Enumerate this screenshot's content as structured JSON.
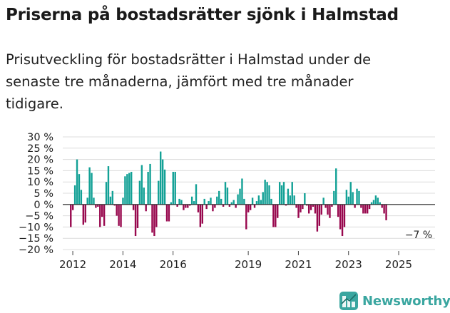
{
  "header": {
    "title": "Priserna på bostadsrätter sjönk i Halmstad",
    "subtitle": "Prisutveckling för bostadsrätter i Halmstad under de senaste tre månaderna, jämfört med tre månader tidigare."
  },
  "brand": {
    "name": "Newsworthy",
    "icon": "newsworthy-logo-icon",
    "color": "#3aa6a0"
  },
  "colors": {
    "positive": "#13a196",
    "negative": "#98084e",
    "grid": "#dcdcdc",
    "zero_line": "#222222"
  },
  "chart_data": {
    "type": "bar",
    "title": "Priserna på bostadsrätter sjönk i Halmstad",
    "xlabel": "",
    "ylabel": "",
    "ylim": [
      -20,
      30
    ],
    "y_ticks": [
      "30 %",
      "25 %",
      "20 %",
      "15 %",
      "10 %",
      "5 %",
      "0 %",
      "−5 %",
      "−10 %",
      "−15 %",
      "−20 %"
    ],
    "y_tick_values": [
      30,
      25,
      20,
      15,
      10,
      5,
      0,
      -5,
      -10,
      -15,
      -20
    ],
    "x_start": 2011.92,
    "x_step": 0.08333,
    "x_ticks": [
      "2012",
      "2014",
      "2016",
      "2019",
      "2021",
      "2023",
      "2025"
    ],
    "x_tick_values": [
      2012,
      2014,
      2016,
      2019,
      2021,
      2023,
      2025
    ],
    "annotation": {
      "text": "−7 %",
      "x": 2025.83,
      "value": -7
    },
    "values": [
      -10,
      -2.5,
      8.5,
      20,
      13.5,
      6.5,
      -9,
      -8,
      3,
      16.5,
      14,
      3,
      -1.5,
      -1,
      -10,
      -5.5,
      -9.5,
      10,
      17,
      3.5,
      6,
      -0.5,
      -5,
      -9.5,
      -10,
      3,
      12.5,
      13.5,
      14,
      14.5,
      -2.5,
      -14,
      -10.5,
      10.5,
      17.5,
      7.5,
      -3,
      14.5,
      18,
      -12.5,
      -14,
      -10,
      10.5,
      23.5,
      20,
      15.5,
      -7.5,
      -7.5,
      1,
      14.5,
      14.5,
      -1,
      2.5,
      2,
      -2.5,
      -1.5,
      -1.5,
      -0.5,
      3.5,
      1.5,
      9,
      -3.5,
      -10,
      -8.5,
      2.5,
      -2,
      1.5,
      3,
      -3,
      -1.5,
      3.5,
      6,
      2.5,
      -1,
      10,
      7.5,
      -1,
      1,
      2,
      -1.5,
      4.5,
      7,
      11.5,
      2.5,
      -11,
      -3.5,
      -2.5,
      3,
      -1.5,
      1.5,
      4,
      2,
      5.5,
      11,
      10,
      8.5,
      2.5,
      -10,
      -10,
      -6,
      10,
      8.5,
      10,
      -0.5,
      7,
      4,
      10,
      4,
      -1.5,
      -6,
      -3.5,
      -2,
      5,
      -0.5,
      -4,
      -2.5,
      -1,
      -4,
      -12,
      -9.5,
      -4.5,
      3,
      -1.5,
      -4.5,
      -6,
      -1,
      6,
      16,
      -5.5,
      -11,
      -14,
      -10,
      6.5,
      3.5,
      10,
      5.5,
      -1.5,
      7,
      6,
      -1.5,
      -4,
      -4,
      -4,
      -2,
      1,
      2,
      4,
      3,
      1,
      -1.5,
      -4,
      -7
    ]
  }
}
